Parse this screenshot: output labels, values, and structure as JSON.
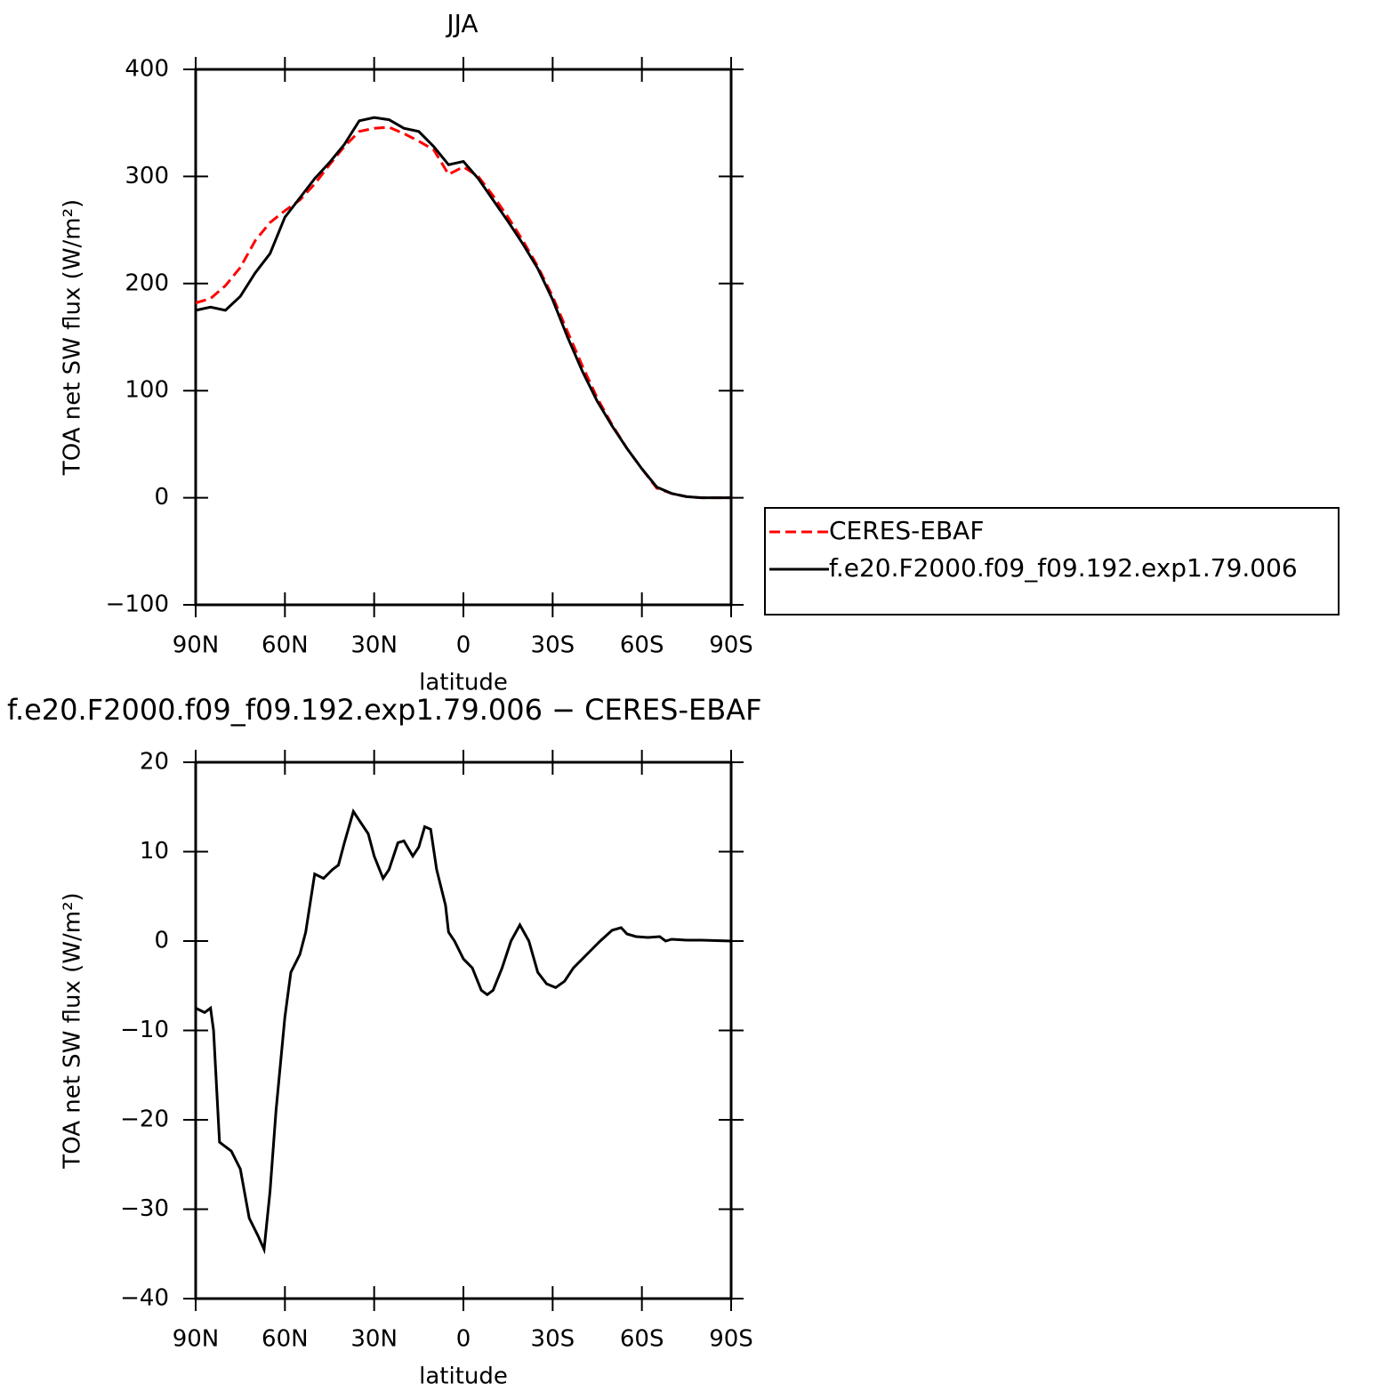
{
  "chart_data": [
    {
      "type": "line",
      "title": "JJA",
      "xlabel": "latitude",
      "ylabel": "TOA net SW flux (W/m²)",
      "x": [
        90,
        85,
        80,
        75,
        70,
        65,
        60,
        55,
        50,
        45,
        40,
        35,
        30,
        25,
        20,
        15,
        10,
        5,
        0,
        -5,
        -10,
        -15,
        -20,
        -25,
        -30,
        -35,
        -40,
        -45,
        -50,
        -55,
        -60,
        -65,
        -70,
        -75,
        -80,
        -85,
        -90
      ],
      "series": [
        {
          "name": "CERES-EBAF",
          "color": "#ff0000",
          "line_style": "dashed",
          "values": [
            182,
            186,
            198,
            215,
            240,
            257,
            268,
            278,
            293,
            311,
            328,
            342,
            345,
            346,
            340,
            333,
            325,
            302,
            309,
            300,
            282,
            262,
            240,
            216,
            188,
            155,
            123,
            93,
            68,
            46,
            27,
            9,
            4,
            1,
            0,
            0,
            0
          ]
        },
        {
          "name": "f.e20.F2000.f09_f09.192.exp1.79.006",
          "color": "#000000",
          "line_style": "solid",
          "values": [
            175,
            178,
            175,
            188,
            210,
            228,
            262,
            280,
            298,
            313,
            330,
            352,
            355,
            353,
            345,
            342,
            328,
            311,
            314,
            298,
            278,
            258,
            237,
            214,
            185,
            150,
            118,
            90,
            67,
            46,
            27,
            10,
            4,
            1,
            0,
            0,
            0
          ]
        }
      ],
      "xlim": [
        90,
        -90
      ],
      "xticks": [
        {
          "value": 90,
          "label": "90N"
        },
        {
          "value": 60,
          "label": "60N"
        },
        {
          "value": 30,
          "label": "30N"
        },
        0,
        {
          "value": -30,
          "label": "30S"
        },
        {
          "value": -60,
          "label": "60S"
        },
        {
          "value": -90,
          "label": "90S"
        }
      ],
      "ylim": [
        -100,
        400
      ],
      "yticks": [
        {
          "value": -100,
          "label": "−100"
        },
        0,
        100,
        200,
        300,
        400
      ],
      "legend": "right"
    },
    {
      "type": "line",
      "title": "f.e20.F2000.f09_f09.192.exp1.79.006 − CERES-EBAF",
      "xlabel": "latitude",
      "ylabel": "TOA net SW flux (W/m²)",
      "x": [
        90,
        87,
        85,
        84,
        82,
        78,
        75,
        72,
        69,
        67,
        65,
        63,
        60,
        58,
        55,
        53,
        50,
        47,
        44,
        42,
        40,
        37,
        35,
        32,
        30,
        27,
        25,
        22,
        20,
        17,
        15,
        13,
        11,
        9,
        6,
        5,
        3,
        0,
        -3,
        -6,
        -8,
        -10,
        -13,
        -16,
        -19,
        -22,
        -25,
        -28,
        -31,
        -34,
        -37,
        -40,
        -43,
        -46,
        -50,
        -53,
        -55,
        -58,
        -62,
        -66,
        -68,
        -70,
        -75,
        -80,
        -90
      ],
      "values": [
        -7.5,
        -8,
        -7.5,
        -10,
        -22.5,
        -23.5,
        -25.5,
        -31,
        -33,
        -34.5,
        -28,
        -19,
        -8.5,
        -3.5,
        -1.5,
        1,
        7.5,
        7,
        8,
        8.5,
        11,
        14.5,
        13.5,
        12,
        9.5,
        7,
        8,
        11,
        11.2,
        9.5,
        10.5,
        12.8,
        12.5,
        8,
        4,
        1,
        0,
        -2,
        -3,
        -5.5,
        -6,
        -5.5,
        -3,
        0,
        1.8,
        0,
        -3.5,
        -4.8,
        -5.2,
        -4.5,
        -3,
        -2,
        -1,
        0,
        1.2,
        1.5,
        0.8,
        0.5,
        0.4,
        0.5,
        0,
        0.2,
        0.1,
        0.1,
        0
      ],
      "color": "#000000",
      "line_style": "solid",
      "xlim": [
        90,
        -90
      ],
      "xticks": [
        {
          "value": 90,
          "label": "90N"
        },
        {
          "value": 60,
          "label": "60N"
        },
        {
          "value": 30,
          "label": "30N"
        },
        0,
        {
          "value": -30,
          "label": "30S"
        },
        {
          "value": -60,
          "label": "60S"
        },
        {
          "value": -90,
          "label": "90S"
        }
      ],
      "ylim": [
        -40,
        20
      ],
      "yticks": [
        {
          "value": -40,
          "label": "−40"
        },
        {
          "value": -30,
          "label": "−30"
        },
        {
          "value": -20,
          "label": "−20"
        },
        {
          "value": -10,
          "label": "−10"
        },
        0,
        10,
        20
      ]
    }
  ]
}
